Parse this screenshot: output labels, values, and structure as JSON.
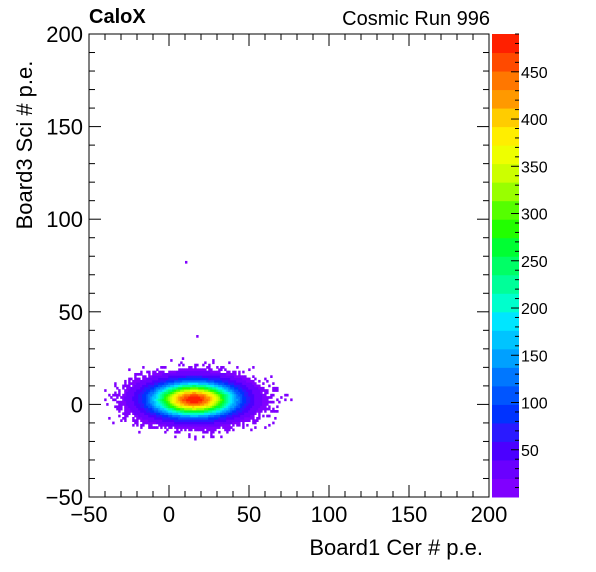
{
  "header": {
    "experiment_label": "CaloX",
    "run_label": "Cosmic Run 996"
  },
  "chart_data": {
    "type": "heatmap",
    "title": "",
    "xlabel": "Board1 Cer # p.e.",
    "ylabel": "Board3 Sci # p.e.",
    "xlim": [
      -50,
      200
    ],
    "ylim": [
      -50,
      200
    ],
    "x_ticks": [
      -50,
      0,
      50,
      100,
      150,
      200
    ],
    "y_ticks": [
      -50,
      0,
      50,
      100,
      150,
      200
    ],
    "colorbar": {
      "range": [
        0,
        490
      ],
      "ticks": [
        50,
        100,
        150,
        200,
        250,
        300,
        350,
        400,
        450
      ],
      "palette": [
        "#8000ff",
        "#6a00ff",
        "#4b00ff",
        "#2a1aff",
        "#0033ff",
        "#0055ff",
        "#0077ff",
        "#00a0ff",
        "#00c4ff",
        "#00e6ff",
        "#00ffcc",
        "#00ff99",
        "#00ff66",
        "#00ff33",
        "#22ff00",
        "#55ff00",
        "#99ff00",
        "#ccff00",
        "#eeff00",
        "#ffee00",
        "#ffcc00",
        "#ff9900",
        "#ff7700",
        "#ff4a00",
        "#ff2000"
      ]
    },
    "cluster": {
      "center_x": 15,
      "center_y": 2,
      "sigma_x": 17,
      "sigma_y": 6,
      "peak_counts": 490
    },
    "outliers": [
      {
        "x": 10,
        "y": 76
      },
      {
        "x": 17,
        "y": 36
      },
      {
        "x": 8,
        "y": 24
      }
    ],
    "grid": false
  }
}
